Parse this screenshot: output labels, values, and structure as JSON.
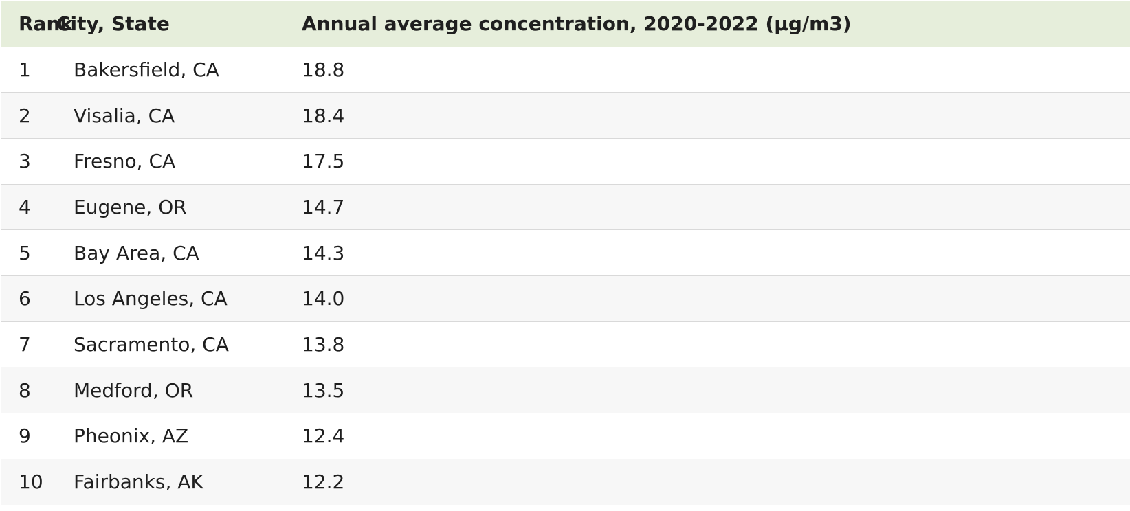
{
  "table": {
    "headers": {
      "rank": "Rank",
      "city": "City, State",
      "value": "Annual average concentration, 2020-2022 (µg/m3)"
    },
    "rows": [
      {
        "rank": "1",
        "city": "Bakersfield, CA",
        "value": "18.8"
      },
      {
        "rank": "2",
        "city": "Visalia, CA",
        "value": "18.4"
      },
      {
        "rank": "3",
        "city": "Fresno, CA",
        "value": "17.5"
      },
      {
        "rank": "4",
        "city": "Eugene, OR",
        "value": "14.7"
      },
      {
        "rank": "5",
        "city": "Bay Area, CA",
        "value": "14.3"
      },
      {
        "rank": "6",
        "city": "Los Angeles, CA",
        "value": "14.0"
      },
      {
        "rank": "7",
        "city": "Sacramento, CA",
        "value": "13.8"
      },
      {
        "rank": "8",
        "city": "Medford, OR",
        "value": "13.5"
      },
      {
        "rank": "9",
        "city": "Pheonix, AZ",
        "value": "12.4"
      },
      {
        "rank": "10",
        "city": "Fairbanks, AK",
        "value": "12.2"
      }
    ]
  },
  "colors": {
    "header_bg": "#e6eedb",
    "alt_row_bg": "#f7f7f7",
    "row_divider": "#d9d9d9",
    "text": "#1f1f1f"
  }
}
